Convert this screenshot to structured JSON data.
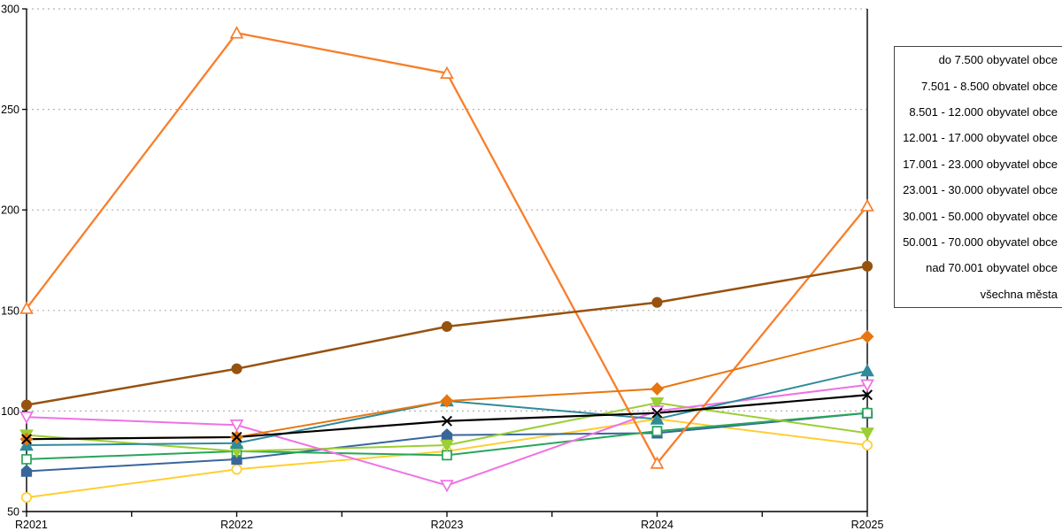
{
  "chart_data": {
    "type": "line",
    "title": "",
    "xlabel": "",
    "ylabel": "",
    "categories": [
      "R2021",
      "R2022",
      "R2023",
      "R2024",
      "R2025"
    ],
    "ylim": [
      50,
      300
    ],
    "ytick_step": 50,
    "yticks": [
      50,
      100,
      150,
      200,
      250,
      300
    ],
    "grid": "horizontal-dotted",
    "legend_position": "right-outside",
    "series": [
      {
        "name": "do 7.500 obyvatel obce",
        "color": "#FFCE31",
        "marker": "circle",
        "marker_style": "open",
        "values": [
          57,
          71,
          80,
          96,
          83
        ]
      },
      {
        "name": "7.501 - 8.500 obvatel obce",
        "color": "#38659B",
        "marker": "pentagon",
        "marker_style": "filled",
        "values": [
          70,
          76,
          88,
          89,
          99
        ]
      },
      {
        "name": "8.501 - 12.000 obyvatel obce",
        "color": "#27A658",
        "marker": "square",
        "marker_style": "open",
        "values": [
          76,
          80,
          78,
          90,
          99
        ]
      },
      {
        "name": "12.001 - 17.000 obyvatel obce",
        "color": "#9CCE35",
        "marker": "triangle-down",
        "marker_style": "filled",
        "values": [
          88,
          80,
          83,
          104,
          89
        ]
      },
      {
        "name": "17.001 - 23.000 obyvatel obce",
        "color": "#EF72E4",
        "marker": "triangle-down",
        "marker_style": "open",
        "values": [
          97,
          93,
          63,
          100,
          113
        ]
      },
      {
        "name": "23.001 - 30.000 obyvatel obce",
        "color": "#2E8B9B",
        "marker": "triangle-up",
        "marker_style": "filled",
        "values": [
          83,
          84,
          105,
          96,
          120
        ]
      },
      {
        "name": "30.001 - 50.000 obyvatel obce",
        "color": "#F87E2B",
        "marker": "triangle-up",
        "marker_style": "open",
        "values": [
          151,
          288,
          268,
          74,
          202
        ]
      },
      {
        "name": "50.001 - 70.000 obyvatel obce",
        "color": "#E8760E",
        "marker": "diamond",
        "marker_style": "filled",
        "values": [
          86,
          87,
          105,
          111,
          137
        ]
      },
      {
        "name": "nad 70.001 obyvatel obce",
        "color": "#96520F",
        "marker": "circle",
        "marker_style": "filled",
        "values": [
          103,
          121,
          142,
          154,
          172
        ]
      },
      {
        "name": "všechna města",
        "color": "#000000",
        "marker": "x",
        "marker_style": "open",
        "values": [
          86,
          87,
          95,
          99,
          108
        ]
      }
    ],
    "axis_color": "#000000",
    "gridline_color": "#B3B3B3",
    "legend_border_color": "#454545"
  }
}
